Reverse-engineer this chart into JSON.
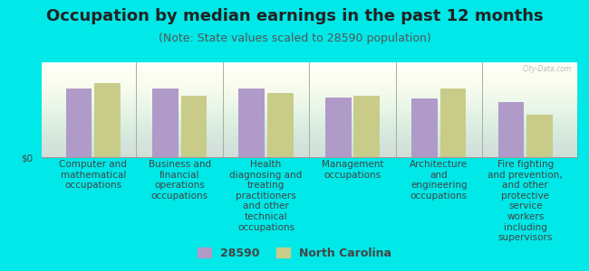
{
  "title": "Occupation by median earnings in the past 12 months",
  "subtitle": "(Note: State values scaled to 28590 population)",
  "background_color": "#00e8e8",
  "plot_bg_top": "#f0f5e0",
  "plot_bg_bottom": "#ffffff",
  "categories": [
    "Computer and\nmathematical\noccupations",
    "Business and\nfinancial\noperations\noccupations",
    "Health\ndiagnosing and\ntreating\npractitioners\nand other\ntechnical\noccupations",
    "Management\noccupations",
    "Architecture\nand\nengineering\noccupations",
    "Fire fighting\nand prevention,\nand other\nprotective\nservice\nworkers\nincluding\nsupervisors"
  ],
  "values_28590": [
    0.72,
    0.72,
    0.72,
    0.63,
    0.62,
    0.58
  ],
  "values_nc": [
    0.78,
    0.65,
    0.68,
    0.65,
    0.72,
    0.45
  ],
  "color_28590": "#b09ac8",
  "color_nc": "#c8cc88",
  "legend_28590": "28590",
  "legend_nc": "North Carolina",
  "ylabel": "$0",
  "ylim": [
    0,
    1.0
  ],
  "title_fontsize": 13,
  "subtitle_fontsize": 9,
  "tick_fontsize": 7.5,
  "label_fontsize": 7.5
}
